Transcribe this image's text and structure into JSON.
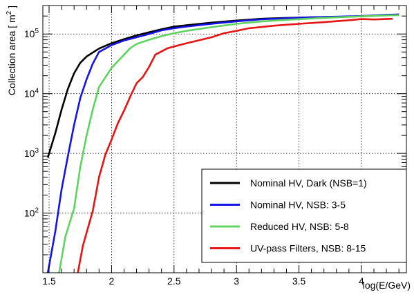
{
  "chart_data": {
    "type": "line",
    "xlabel": "log(E/GeV)",
    "ylabel": "Collection area [ m",
    "ylabel_sup": "2",
    "ylabel_end": " ]",
    "xlim": [
      1.45,
      4.36
    ],
    "ylim": [
      10,
      300000
    ],
    "yscale": "log",
    "grid": true,
    "x_ticks": [
      {
        "v": 1.5,
        "label": "1.5"
      },
      {
        "v": 2,
        "label": "2"
      },
      {
        "v": 2.5,
        "label": "2.5"
      },
      {
        "v": 3,
        "label": "3"
      },
      {
        "v": 3.5,
        "label": "3.5"
      },
      {
        "v": 4,
        "label": "4"
      }
    ],
    "y_ticks": [
      {
        "v": 100,
        "base": "10",
        "exp": "2"
      },
      {
        "v": 1000,
        "base": "10",
        "exp": "3"
      },
      {
        "v": 10000,
        "base": "10",
        "exp": "4"
      },
      {
        "v": 100000,
        "base": "10",
        "exp": "5"
      }
    ],
    "legend_position": "bottom-right",
    "series": [
      {
        "name": "Nominal HV, Dark (NSB=1)",
        "color": "#000000",
        "points": [
          [
            1.49,
            850
          ],
          [
            1.55,
            2200
          ],
          [
            1.6,
            5400
          ],
          [
            1.65,
            12000
          ],
          [
            1.7,
            22000
          ],
          [
            1.75,
            33000
          ],
          [
            1.8,
            42000
          ],
          [
            1.9,
            57000
          ],
          [
            2.0,
            70000
          ],
          [
            2.1,
            82000
          ],
          [
            2.2,
            95000
          ],
          [
            2.3,
            107000
          ],
          [
            2.4,
            120000
          ],
          [
            2.5,
            133000
          ],
          [
            2.6,
            140000
          ],
          [
            2.8,
            155000
          ],
          [
            3.0,
            168000
          ],
          [
            3.2,
            180000
          ],
          [
            3.4,
            186000
          ],
          [
            3.6,
            190000
          ],
          [
            3.8,
            194000
          ],
          [
            4.0,
            198000
          ],
          [
            4.2,
            206000
          ],
          [
            4.3,
            210000
          ]
        ]
      },
      {
        "name": "Nominal HV, NSB: 3-5",
        "color": "#1414e6",
        "points": [
          [
            1.49,
            10
          ],
          [
            1.55,
            50
          ],
          [
            1.6,
            250
          ],
          [
            1.65,
            900
          ],
          [
            1.7,
            3000
          ],
          [
            1.75,
            8500
          ],
          [
            1.8,
            17500
          ],
          [
            1.85,
            32000
          ],
          [
            1.9,
            50000
          ],
          [
            2.0,
            65000
          ],
          [
            2.1,
            78000
          ],
          [
            2.2,
            88000
          ],
          [
            2.3,
            100000
          ],
          [
            2.4,
            115000
          ],
          [
            2.5,
            125000
          ],
          [
            2.6,
            133000
          ],
          [
            2.8,
            148000
          ],
          [
            3.0,
            163000
          ],
          [
            3.2,
            176000
          ],
          [
            3.4,
            184000
          ],
          [
            3.6,
            190000
          ],
          [
            3.8,
            195000
          ],
          [
            4.0,
            200000
          ],
          [
            4.2,
            210000
          ],
          [
            4.3,
            213000
          ]
        ]
      },
      {
        "name": "Reduced HV, NSB: 5-8",
        "color": "#5fd35f",
        "points": [
          [
            1.58,
            10
          ],
          [
            1.63,
            40
          ],
          [
            1.7,
            120
          ],
          [
            1.75,
            600
          ],
          [
            1.8,
            2000
          ],
          [
            1.85,
            5500
          ],
          [
            1.9,
            13000
          ],
          [
            2.0,
            27000
          ],
          [
            2.1,
            45000
          ],
          [
            2.15,
            58000
          ],
          [
            2.2,
            68000
          ],
          [
            2.3,
            80000
          ],
          [
            2.4,
            92000
          ],
          [
            2.5,
            103000
          ],
          [
            2.6,
            113000
          ],
          [
            2.8,
            130000
          ],
          [
            3.0,
            148000
          ],
          [
            3.2,
            162000
          ],
          [
            3.4,
            173000
          ],
          [
            3.6,
            182000
          ],
          [
            3.8,
            190000
          ],
          [
            4.0,
            198000
          ],
          [
            4.2,
            205000
          ],
          [
            4.3,
            207000
          ]
        ]
      },
      {
        "name": "UV-pass Filters, NSB: 8-15",
        "color": "#e61414",
        "points": [
          [
            1.73,
            10
          ],
          [
            1.77,
            28
          ],
          [
            1.85,
            110
          ],
          [
            1.9,
            400
          ],
          [
            1.95,
            950
          ],
          [
            2.0,
            1700
          ],
          [
            2.05,
            3200
          ],
          [
            2.1,
            5200
          ],
          [
            2.15,
            9000
          ],
          [
            2.2,
            15000
          ],
          [
            2.25,
            19000
          ],
          [
            2.3,
            28000
          ],
          [
            2.35,
            45000
          ],
          [
            2.45,
            58000
          ],
          [
            2.6,
            70000
          ],
          [
            2.8,
            88000
          ],
          [
            2.9,
            103000
          ],
          [
            3.0,
            113000
          ],
          [
            3.1,
            125000
          ],
          [
            3.3,
            138000
          ],
          [
            3.5,
            148000
          ],
          [
            3.7,
            158000
          ],
          [
            3.9,
            170000
          ],
          [
            4.0,
            178000
          ],
          [
            4.1,
            175000
          ],
          [
            4.25,
            180000
          ]
        ]
      }
    ]
  }
}
